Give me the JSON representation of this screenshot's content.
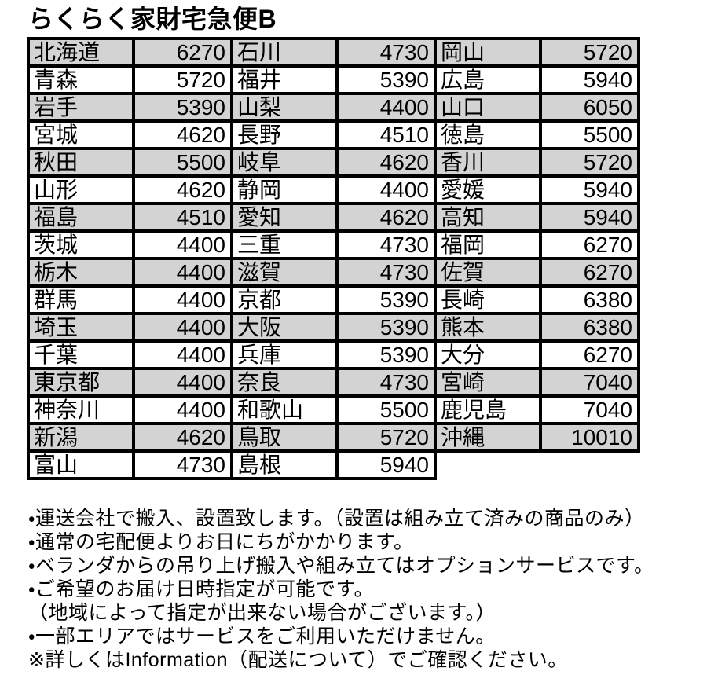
{
  "title": "らくらく家財宅急便B",
  "colors": {
    "shaded_row": "#d3d3d3",
    "plain_row": "#ffffff",
    "border": "#000000",
    "text": "#000000"
  },
  "table": {
    "rows": [
      [
        {
          "pref": "北海道",
          "price": "6270"
        },
        {
          "pref": "石川",
          "price": "4730"
        },
        {
          "pref": "岡山",
          "price": "5720"
        }
      ],
      [
        {
          "pref": "青森",
          "price": "5720"
        },
        {
          "pref": "福井",
          "price": "5390"
        },
        {
          "pref": "広島",
          "price": "5940"
        }
      ],
      [
        {
          "pref": "岩手",
          "price": "5390"
        },
        {
          "pref": "山梨",
          "price": "4400"
        },
        {
          "pref": "山口",
          "price": "6050"
        }
      ],
      [
        {
          "pref": "宮城",
          "price": "4620"
        },
        {
          "pref": "長野",
          "price": "4510"
        },
        {
          "pref": "徳島",
          "price": "5500"
        }
      ],
      [
        {
          "pref": "秋田",
          "price": "5500"
        },
        {
          "pref": "岐阜",
          "price": "4620"
        },
        {
          "pref": "香川",
          "price": "5720"
        }
      ],
      [
        {
          "pref": "山形",
          "price": "4620"
        },
        {
          "pref": "静岡",
          "price": "4400"
        },
        {
          "pref": "愛媛",
          "price": "5940"
        }
      ],
      [
        {
          "pref": "福島",
          "price": "4510"
        },
        {
          "pref": "愛知",
          "price": "4620"
        },
        {
          "pref": "高知",
          "price": "5940"
        }
      ],
      [
        {
          "pref": "茨城",
          "price": "4400"
        },
        {
          "pref": "三重",
          "price": "4730"
        },
        {
          "pref": "福岡",
          "price": "6270"
        }
      ],
      [
        {
          "pref": "栃木",
          "price": "4400"
        },
        {
          "pref": "滋賀",
          "price": "4730"
        },
        {
          "pref": "佐賀",
          "price": "6270"
        }
      ],
      [
        {
          "pref": "群馬",
          "price": "4400"
        },
        {
          "pref": "京都",
          "price": "5390"
        },
        {
          "pref": "長崎",
          "price": "6380"
        }
      ],
      [
        {
          "pref": "埼玉",
          "price": "4400"
        },
        {
          "pref": "大阪",
          "price": "5390"
        },
        {
          "pref": "熊本",
          "price": "6380"
        }
      ],
      [
        {
          "pref": "千葉",
          "price": "4400"
        },
        {
          "pref": "兵庫",
          "price": "5390"
        },
        {
          "pref": "大分",
          "price": "6270"
        }
      ],
      [
        {
          "pref": "東京都",
          "price": "4400"
        },
        {
          "pref": "奈良",
          "price": "4730"
        },
        {
          "pref": "宮崎",
          "price": "7040"
        }
      ],
      [
        {
          "pref": "神奈川",
          "price": "4400"
        },
        {
          "pref": "和歌山",
          "price": "5500"
        },
        {
          "pref": "鹿児島",
          "price": "7040"
        }
      ],
      [
        {
          "pref": "新潟",
          "price": "4620"
        },
        {
          "pref": "鳥取",
          "price": "5720"
        },
        {
          "pref": "沖縄",
          "price": "10010"
        }
      ],
      [
        {
          "pref": "富山",
          "price": "4730"
        },
        {
          "pref": "島根",
          "price": "5940"
        }
      ]
    ]
  },
  "notes": [
    "・運送会社で搬入、設置致します。（設置は組み立て済みの商品のみ）",
    "・通常の宅配便よりお日にちがかかります。",
    "・ベランダからの吊り上げ搬入や組み立てはオプションサービスです。",
    "・ご希望のお届け日時指定が可能です。",
    "（地域によって指定が出来ない場合がございます。）",
    "・一部エリアではサービスをご利用いただけません。",
    "※詳しくはInformation（配送について）でご確認ください。"
  ]
}
